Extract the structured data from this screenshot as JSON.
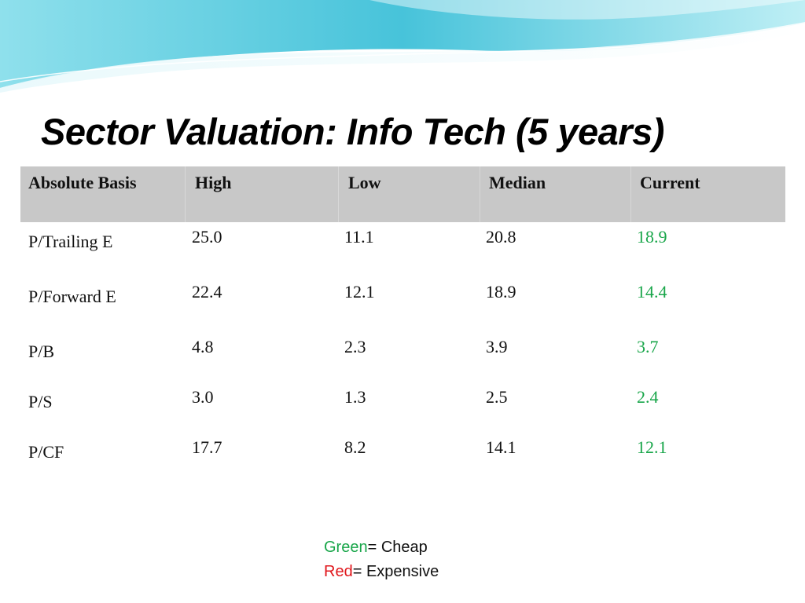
{
  "slide": {
    "title": "Sector Valuation: Info Tech (5 years)"
  },
  "colors": {
    "header_bg": "#c8c8c8",
    "cheap_green": "#19a64a",
    "expensive_red": "#e0161b",
    "wave_blue": "#4fc9dd"
  },
  "table": {
    "headers": [
      "Absolute Basis",
      "High",
      "Low",
      "Median",
      "Current"
    ],
    "rows": [
      {
        "label": "P/Trailing E",
        "high": "25.0",
        "low": "11.1",
        "median": "20.8",
        "current": "18.9"
      },
      {
        "label": "P/Forward E",
        "high": "22.4",
        "low": "12.1",
        "median": "18.9",
        "current": "14.4"
      },
      {
        "label": "P/B",
        "high": "4.8",
        "low": "2.3",
        "median": "3.9",
        "current": "3.7"
      },
      {
        "label": "P/S",
        "high": "3.0",
        "low": "1.3",
        "median": "2.5",
        "current": "2.4"
      },
      {
        "label": "P/CF",
        "high": "17.7",
        "low": "8.2",
        "median": "14.1",
        "current": "12.1"
      }
    ]
  },
  "legend": {
    "green_word": "Green",
    "green_text": "= Cheap",
    "red_word": "Red",
    "red_text": "= Expensive"
  }
}
